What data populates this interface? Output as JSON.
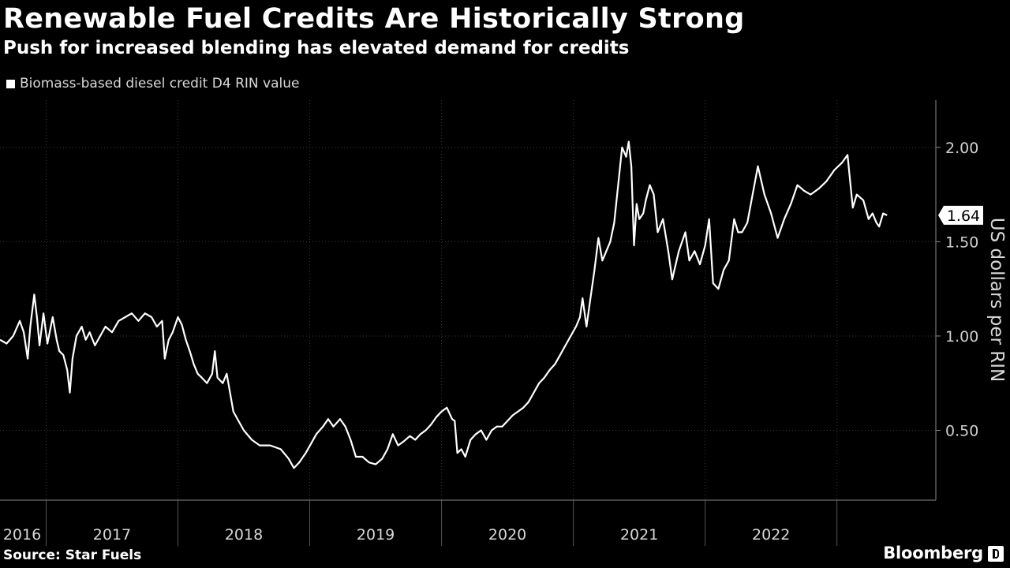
{
  "chart_data": {
    "type": "line",
    "title": "Renewable Fuel Credits Are Historically Strong",
    "subtitle": "Push for increased blending has elevated demand for credits",
    "legend": [
      "Biomass-based diesel credit D4 RIN value"
    ],
    "ylabel": "US dollars per RIN",
    "xlabel": "",
    "x_ticks": [
      "2016",
      "2017",
      "2018",
      "2019",
      "2020",
      "2021",
      "2022"
    ],
    "y_ticks": [
      0.5,
      1.0,
      1.5,
      2.0
    ],
    "y_tick_labels": [
      "0.50",
      "1.00",
      "1.50",
      "2.00"
    ],
    "xlim": [
      2016.65,
      2023.75
    ],
    "ylim": [
      0.13,
      2.25
    ],
    "grid": true,
    "last_value_label": "1.64",
    "series": [
      {
        "name": "Biomass-based diesel credit D4 RIN value",
        "color": "#ffffff",
        "points": [
          [
            2016.65,
            0.98
          ],
          [
            2016.7,
            0.96
          ],
          [
            2016.75,
            1.0
          ],
          [
            2016.8,
            1.08
          ],
          [
            2016.83,
            1.02
          ],
          [
            2016.86,
            0.88
          ],
          [
            2016.88,
            1.05
          ],
          [
            2016.91,
            1.22
          ],
          [
            2016.93,
            1.1
          ],
          [
            2016.95,
            0.95
          ],
          [
            2016.98,
            1.12
          ],
          [
            2017.01,
            0.96
          ],
          [
            2017.05,
            1.1
          ],
          [
            2017.08,
            0.98
          ],
          [
            2017.1,
            0.92
          ],
          [
            2017.13,
            0.9
          ],
          [
            2017.16,
            0.82
          ],
          [
            2017.18,
            0.7
          ],
          [
            2017.2,
            0.88
          ],
          [
            2017.23,
            1.0
          ],
          [
            2017.27,
            1.05
          ],
          [
            2017.3,
            0.98
          ],
          [
            2017.33,
            1.02
          ],
          [
            2017.37,
            0.95
          ],
          [
            2017.41,
            1.0
          ],
          [
            2017.45,
            1.05
          ],
          [
            2017.5,
            1.02
          ],
          [
            2017.55,
            1.08
          ],
          [
            2017.6,
            1.1
          ],
          [
            2017.65,
            1.12
          ],
          [
            2017.7,
            1.08
          ],
          [
            2017.75,
            1.12
          ],
          [
            2017.8,
            1.1
          ],
          [
            2017.84,
            1.05
          ],
          [
            2017.88,
            1.08
          ],
          [
            2017.9,
            0.88
          ],
          [
            2017.93,
            0.98
          ],
          [
            2017.96,
            1.02
          ],
          [
            2018.0,
            1.1
          ],
          [
            2018.03,
            1.06
          ],
          [
            2018.06,
            0.98
          ],
          [
            2018.09,
            0.92
          ],
          [
            2018.12,
            0.85
          ],
          [
            2018.15,
            0.8
          ],
          [
            2018.18,
            0.78
          ],
          [
            2018.22,
            0.75
          ],
          [
            2018.26,
            0.8
          ],
          [
            2018.28,
            0.92
          ],
          [
            2018.3,
            0.78
          ],
          [
            2018.34,
            0.75
          ],
          [
            2018.37,
            0.8
          ],
          [
            2018.39,
            0.72
          ],
          [
            2018.42,
            0.6
          ],
          [
            2018.46,
            0.55
          ],
          [
            2018.5,
            0.5
          ],
          [
            2018.56,
            0.45
          ],
          [
            2018.62,
            0.42
          ],
          [
            2018.7,
            0.42
          ],
          [
            2018.78,
            0.4
          ],
          [
            2018.84,
            0.35
          ],
          [
            2018.88,
            0.3
          ],
          [
            2018.92,
            0.33
          ],
          [
            2018.97,
            0.38
          ],
          [
            2019.01,
            0.43
          ],
          [
            2019.05,
            0.48
          ],
          [
            2019.1,
            0.52
          ],
          [
            2019.14,
            0.56
          ],
          [
            2019.18,
            0.52
          ],
          [
            2019.23,
            0.56
          ],
          [
            2019.27,
            0.52
          ],
          [
            2019.31,
            0.45
          ],
          [
            2019.35,
            0.36
          ],
          [
            2019.4,
            0.36
          ],
          [
            2019.45,
            0.33
          ],
          [
            2019.5,
            0.32
          ],
          [
            2019.55,
            0.35
          ],
          [
            2019.59,
            0.4
          ],
          [
            2019.63,
            0.48
          ],
          [
            2019.67,
            0.42
          ],
          [
            2019.71,
            0.44
          ],
          [
            2019.76,
            0.47
          ],
          [
            2019.8,
            0.45
          ],
          [
            2019.84,
            0.48
          ],
          [
            2019.88,
            0.5
          ],
          [
            2019.92,
            0.53
          ],
          [
            2019.96,
            0.57
          ],
          [
            2020.0,
            0.6
          ],
          [
            2020.04,
            0.62
          ],
          [
            2020.08,
            0.56
          ],
          [
            2020.1,
            0.55
          ],
          [
            2020.12,
            0.38
          ],
          [
            2020.15,
            0.4
          ],
          [
            2020.18,
            0.36
          ],
          [
            2020.22,
            0.45
          ],
          [
            2020.26,
            0.48
          ],
          [
            2020.3,
            0.5
          ],
          [
            2020.34,
            0.45
          ],
          [
            2020.38,
            0.5
          ],
          [
            2020.42,
            0.52
          ],
          [
            2020.46,
            0.52
          ],
          [
            2020.5,
            0.55
          ],
          [
            2020.54,
            0.58
          ],
          [
            2020.58,
            0.6
          ],
          [
            2020.62,
            0.62
          ],
          [
            2020.66,
            0.65
          ],
          [
            2020.7,
            0.7
          ],
          [
            2020.74,
            0.75
          ],
          [
            2020.78,
            0.78
          ],
          [
            2020.82,
            0.82
          ],
          [
            2020.86,
            0.85
          ],
          [
            2020.9,
            0.9
          ],
          [
            2020.94,
            0.95
          ],
          [
            2020.98,
            1.0
          ],
          [
            2021.02,
            1.05
          ],
          [
            2021.05,
            1.1
          ],
          [
            2021.07,
            1.2
          ],
          [
            2021.1,
            1.05
          ],
          [
            2021.13,
            1.2
          ],
          [
            2021.16,
            1.35
          ],
          [
            2021.19,
            1.52
          ],
          [
            2021.22,
            1.4
          ],
          [
            2021.25,
            1.45
          ],
          [
            2021.28,
            1.5
          ],
          [
            2021.31,
            1.6
          ],
          [
            2021.34,
            1.8
          ],
          [
            2021.37,
            2.0
          ],
          [
            2021.4,
            1.95
          ],
          [
            2021.42,
            2.03
          ],
          [
            2021.44,
            1.9
          ],
          [
            2021.46,
            1.48
          ],
          [
            2021.48,
            1.7
          ],
          [
            2021.5,
            1.62
          ],
          [
            2021.53,
            1.65
          ],
          [
            2021.55,
            1.72
          ],
          [
            2021.58,
            1.8
          ],
          [
            2021.61,
            1.75
          ],
          [
            2021.64,
            1.55
          ],
          [
            2021.68,
            1.62
          ],
          [
            2021.72,
            1.45
          ],
          [
            2021.75,
            1.3
          ],
          [
            2021.8,
            1.45
          ],
          [
            2021.85,
            1.55
          ],
          [
            2021.88,
            1.4
          ],
          [
            2021.92,
            1.45
          ],
          [
            2021.96,
            1.38
          ],
          [
            2022.0,
            1.48
          ],
          [
            2022.03,
            1.62
          ],
          [
            2022.06,
            1.28
          ],
          [
            2022.1,
            1.25
          ],
          [
            2022.14,
            1.35
          ],
          [
            2022.18,
            1.4
          ],
          [
            2022.22,
            1.62
          ],
          [
            2022.25,
            1.55
          ],
          [
            2022.28,
            1.55
          ],
          [
            2022.32,
            1.6
          ],
          [
            2022.36,
            1.75
          ],
          [
            2022.4,
            1.9
          ],
          [
            2022.45,
            1.75
          ],
          [
            2022.5,
            1.65
          ],
          [
            2022.55,
            1.52
          ],
          [
            2022.6,
            1.62
          ],
          [
            2022.65,
            1.7
          ],
          [
            2022.7,
            1.8
          ],
          [
            2022.75,
            1.77
          ],
          [
            2022.8,
            1.75
          ],
          [
            2022.86,
            1.78
          ],
          [
            2022.92,
            1.82
          ],
          [
            2022.98,
            1.88
          ],
          [
            2023.04,
            1.92
          ],
          [
            2023.08,
            1.96
          ],
          [
            2023.1,
            1.82
          ],
          [
            2023.12,
            1.68
          ],
          [
            2023.15,
            1.75
          ],
          [
            2023.2,
            1.72
          ],
          [
            2023.24,
            1.62
          ],
          [
            2023.27,
            1.65
          ],
          [
            2023.3,
            1.6
          ],
          [
            2023.32,
            1.58
          ],
          [
            2023.35,
            1.65
          ],
          [
            2023.38,
            1.64
          ]
        ]
      }
    ]
  },
  "footer": {
    "source": "Source: Star Fuels",
    "brand": "Bloomberg"
  }
}
